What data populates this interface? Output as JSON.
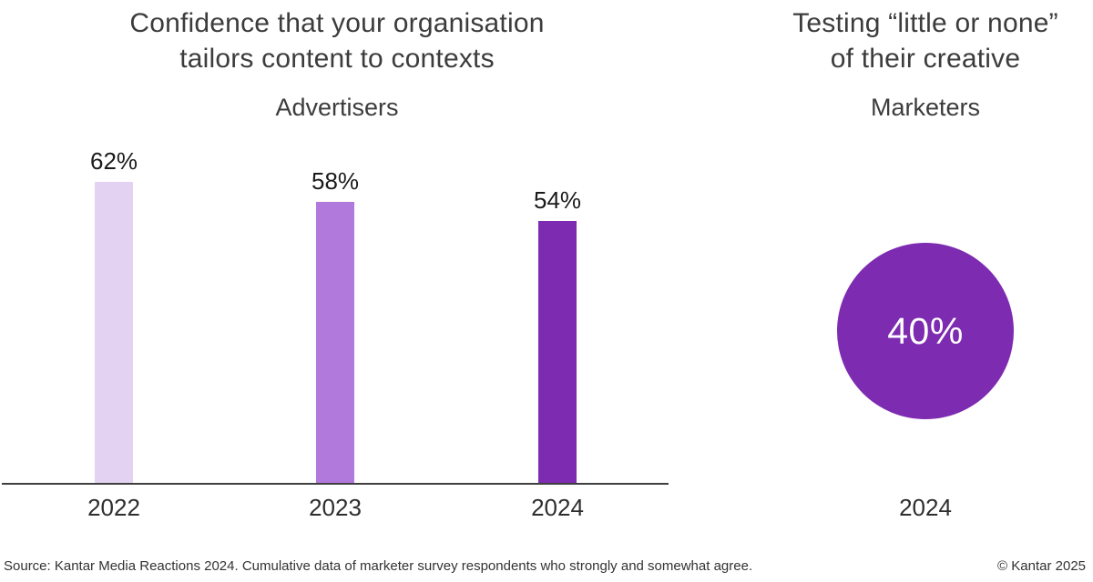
{
  "panels": {
    "left": {
      "title_line1": "Confidence that your organisation",
      "title_line2": "tailors content to contexts",
      "subtitle": "Advertisers"
    },
    "right": {
      "title_line1": "Testing “little or none”",
      "title_line2": "of their creative",
      "subtitle": "Marketers"
    }
  },
  "footer": {
    "source": "Source: Kantar Media Reactions 2024. Cumulative data of marketer survey respondents who strongly and somewhat agree.",
    "copyright": "© Kantar 2025"
  },
  "colors": {
    "bar_2022": "#e4d2f2",
    "bar_2023": "#b279dd",
    "bar_2024": "#7d2bb0",
    "circle": "#7d2bb0",
    "axis_line": "#3f3f3f",
    "title_text": "#3c3c3c",
    "value_text": "#1b1b1b"
  },
  "chart_data": [
    {
      "type": "bar",
      "title": "Confidence that your organisation tailors content to contexts",
      "subtitle": "Advertisers",
      "categories": [
        "2022",
        "2023",
        "2024"
      ],
      "values": [
        62,
        58,
        54
      ],
      "value_labels": [
        "62%",
        "58%",
        "54%"
      ],
      "bar_colors": [
        "#e4d2f2",
        "#b279dd",
        "#7d2bb0"
      ],
      "xlabel": "",
      "ylabel": "",
      "ylim": [
        0,
        62
      ],
      "grid": false,
      "legend": false
    },
    {
      "type": "bubble",
      "title": "Testing “little or none” of their creative",
      "subtitle": "Marketers",
      "categories": [
        "2024"
      ],
      "values": [
        40
      ],
      "value_labels": [
        "40%"
      ],
      "color": "#7d2bb0",
      "grid": false,
      "legend": false
    }
  ]
}
